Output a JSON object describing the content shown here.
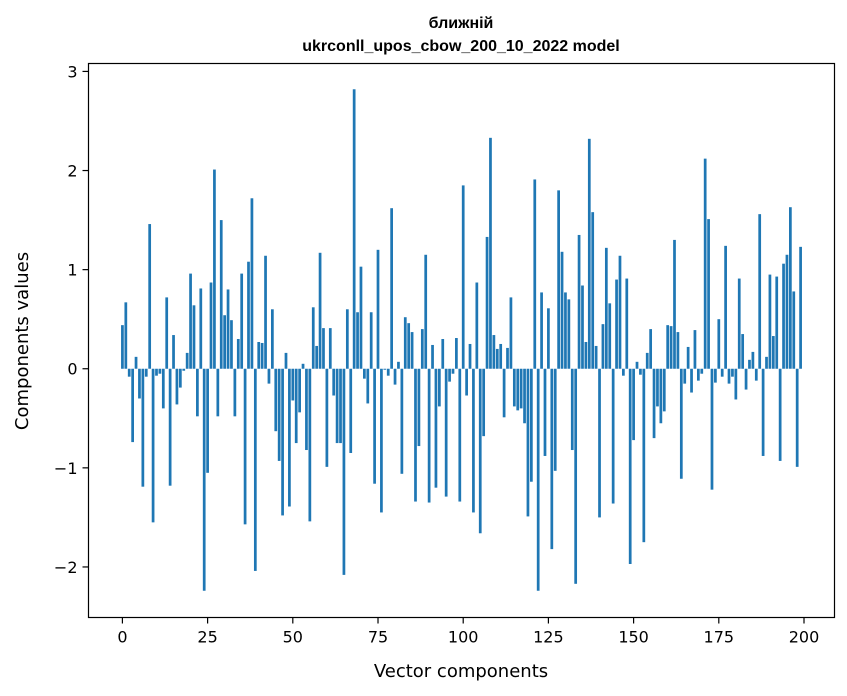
{
  "chart_data": {
    "type": "bar",
    "title": [
      "ближній",
      "ukrconll_upos_cbow_200_10_2022 model"
    ],
    "xlabel": "Vector components",
    "ylabel": "Components values",
    "xlim": [
      -9.95,
      208.95
    ],
    "ylim": [
      -2.51,
      3.08
    ],
    "xticks": [
      0,
      25,
      50,
      75,
      100,
      125,
      150,
      175,
      200
    ],
    "yticks": [
      -2,
      -1,
      0,
      1,
      2,
      3
    ],
    "ytick_labels": [
      "−2",
      "−1",
      "0",
      "1",
      "2",
      "3"
    ],
    "bar_color": "#1f77b4",
    "grid": false,
    "x": [
      0,
      1,
      2,
      3,
      4,
      5,
      6,
      7,
      8,
      9,
      10,
      11,
      12,
      13,
      14,
      15,
      16,
      17,
      18,
      19,
      20,
      21,
      22,
      23,
      24,
      25,
      26,
      27,
      28,
      29,
      30,
      31,
      32,
      33,
      34,
      35,
      36,
      37,
      38,
      39,
      40,
      41,
      42,
      43,
      44,
      45,
      46,
      47,
      48,
      49,
      50,
      51,
      52,
      53,
      54,
      55,
      56,
      57,
      58,
      59,
      60,
      61,
      62,
      63,
      64,
      65,
      66,
      67,
      68,
      69,
      70,
      71,
      72,
      73,
      74,
      75,
      76,
      77,
      78,
      79,
      80,
      81,
      82,
      83,
      84,
      85,
      86,
      87,
      88,
      89,
      90,
      91,
      92,
      93,
      94,
      95,
      96,
      97,
      98,
      99,
      100,
      101,
      102,
      103,
      104,
      105,
      106,
      107,
      108,
      109,
      110,
      111,
      112,
      113,
      114,
      115,
      116,
      117,
      118,
      119,
      120,
      121,
      122,
      123,
      124,
      125,
      126,
      127,
      128,
      129,
      130,
      131,
      132,
      133,
      134,
      135,
      136,
      137,
      138,
      139,
      140,
      141,
      142,
      143,
      144,
      145,
      146,
      147,
      148,
      149,
      150,
      151,
      152,
      153,
      154,
      155,
      156,
      157,
      158,
      159,
      160,
      161,
      162,
      163,
      164,
      165,
      166,
      167,
      168,
      169,
      170,
      171,
      172,
      173,
      174,
      175,
      176,
      177,
      178,
      179,
      180,
      181,
      182,
      183,
      184,
      185,
      186,
      187,
      188,
      189,
      190,
      191,
      192,
      193,
      194,
      195,
      196,
      197,
      198,
      199
    ],
    "values": [
      0.44,
      0.67,
      -0.08,
      -0.74,
      0.12,
      -0.3,
      -1.19,
      -0.08,
      1.46,
      -1.55,
      -0.07,
      -0.05,
      -0.4,
      0.72,
      -1.18,
      0.34,
      -0.36,
      -0.19,
      -0.02,
      0.16,
      0.96,
      0.64,
      -0.48,
      0.81,
      -2.24,
      -1.05,
      0.87,
      2.01,
      -0.48,
      1.5,
      0.54,
      0.8,
      0.49,
      -0.48,
      0.3,
      0.96,
      -1.57,
      1.08,
      1.72,
      -2.04,
      0.27,
      0.26,
      1.14,
      -0.15,
      0.6,
      -0.63,
      -0.93,
      -1.48,
      0.16,
      -1.39,
      -0.32,
      -0.75,
      -0.44,
      0.05,
      -0.82,
      -1.54,
      0.62,
      0.23,
      1.17,
      0.41,
      -0.99,
      0.41,
      -0.27,
      -0.75,
      -0.75,
      -2.08,
      0.6,
      -0.85,
      2.82,
      0.57,
      1.03,
      -0.1,
      -0.35,
      0.57,
      -1.16,
      1.2,
      -1.45,
      -0.01,
      -0.07,
      1.62,
      -0.16,
      0.07,
      -1.06,
      0.52,
      0.46,
      0.37,
      -1.34,
      -0.78,
      0.4,
      1.15,
      -1.35,
      0.24,
      -1.2,
      -0.38,
      0.3,
      -1.29,
      -0.13,
      -0.05,
      0.31,
      -1.34,
      1.85,
      -0.27,
      0.25,
      -1.45,
      0.87,
      -1.66,
      -0.68,
      1.33,
      2.33,
      0.34,
      0.2,
      0.25,
      -0.49,
      0.21,
      0.72,
      -0.38,
      -0.42,
      -0.4,
      -0.55,
      -1.49,
      -1.14,
      1.91,
      -2.24,
      0.77,
      -0.88,
      0.61,
      -1.82,
      -1.03,
      1.8,
      1.18,
      0.77,
      0.7,
      -0.82,
      -2.17,
      1.35,
      0.84,
      0.27,
      2.32,
      1.58,
      0.23,
      -1.5,
      0.45,
      1.22,
      0.66,
      -1.36,
      0.9,
      1.14,
      -0.07,
      0.91,
      -1.97,
      -0.72,
      0.07,
      -0.06,
      -1.75,
      0.16,
      0.4,
      -0.7,
      -0.38,
      -0.55,
      -0.43,
      0.44,
      0.43,
      1.3,
      0.37,
      -1.11,
      -0.15,
      0.22,
      -0.24,
      0.39,
      -0.12,
      -0.05,
      2.12,
      1.51,
      -1.22,
      -0.14,
      0.5,
      -0.08,
      1.24,
      -0.15,
      -0.08,
      -0.31,
      0.91,
      0.35,
      -0.21,
      0.09,
      0.17,
      -0.12,
      1.56,
      -0.88,
      0.12,
      0.95,
      0.33,
      0.93,
      -0.93,
      1.06,
      1.15,
      1.63,
      0.78,
      -0.99,
      1.23
    ]
  }
}
